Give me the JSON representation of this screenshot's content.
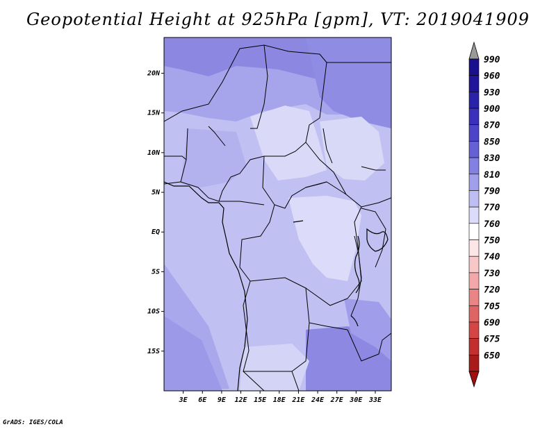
{
  "title": "Geopotential Height at 925hPa [gpm], VT: 2019041909",
  "credit": "GrADS: IGES/COLA",
  "map": {
    "lon_range": [
      0,
      35.5
    ],
    "lat_range": [
      -20,
      24.5
    ],
    "lon_ticks": [
      {
        "value": 3,
        "label": "3E"
      },
      {
        "value": 6,
        "label": "6E"
      },
      {
        "value": 9,
        "label": "9E"
      },
      {
        "value": 12,
        "label": "12E"
      },
      {
        "value": 15,
        "label": "15E"
      },
      {
        "value": 18,
        "label": "18E"
      },
      {
        "value": 21,
        "label": "21E"
      },
      {
        "value": 24,
        "label": "24E"
      },
      {
        "value": 27,
        "label": "27E"
      },
      {
        "value": 30,
        "label": "30E"
      },
      {
        "value": 33,
        "label": "33E"
      }
    ],
    "lat_ticks": [
      {
        "value": 20,
        "label": "20N"
      },
      {
        "value": 15,
        "label": "15N"
      },
      {
        "value": 10,
        "label": "10N"
      },
      {
        "value": 5,
        "label": "5N"
      },
      {
        "value": 0,
        "label": "EQ"
      },
      {
        "value": -5,
        "label": "5S"
      },
      {
        "value": -10,
        "label": "10S"
      },
      {
        "value": -15,
        "label": "15S"
      }
    ]
  },
  "colorbar": {
    "levels": [
      {
        "label": "990",
        "color": "#1a0f8c"
      },
      {
        "label": "960",
        "color": "#20159a"
      },
      {
        "label": "930",
        "color": "#2b22aa"
      },
      {
        "label": "900",
        "color": "#3a30bb"
      },
      {
        "label": "870",
        "color": "#4d45c8"
      },
      {
        "label": "850",
        "color": "#6560d4"
      },
      {
        "label": "830",
        "color": "#8280e0"
      },
      {
        "label": "810",
        "color": "#a09fea"
      },
      {
        "label": "790",
        "color": "#bebef2"
      },
      {
        "label": "770",
        "color": "#dcdcfa"
      },
      {
        "label": "760",
        "color": "#ffffff"
      },
      {
        "label": "750",
        "color": "#fde6e6"
      },
      {
        "label": "740",
        "color": "#f8c8c8"
      },
      {
        "label": "730",
        "color": "#f2a8a8"
      },
      {
        "label": "720",
        "color": "#e98585"
      },
      {
        "label": "705",
        "color": "#df6464"
      },
      {
        "label": "690",
        "color": "#d44646"
      },
      {
        "label": "675",
        "color": "#c22f2f"
      },
      {
        "label": "650",
        "color": "#a81b1b"
      }
    ],
    "top_arrow_color": "#9a9a9a",
    "bottom_arrow_color": "#a01010"
  },
  "field_colors": {
    "c770": "#d8d8f8",
    "c790": "#c0c0f2",
    "c810": "#b0aeee",
    "c830": "#9896e6",
    "c850": "#8480e0"
  }
}
